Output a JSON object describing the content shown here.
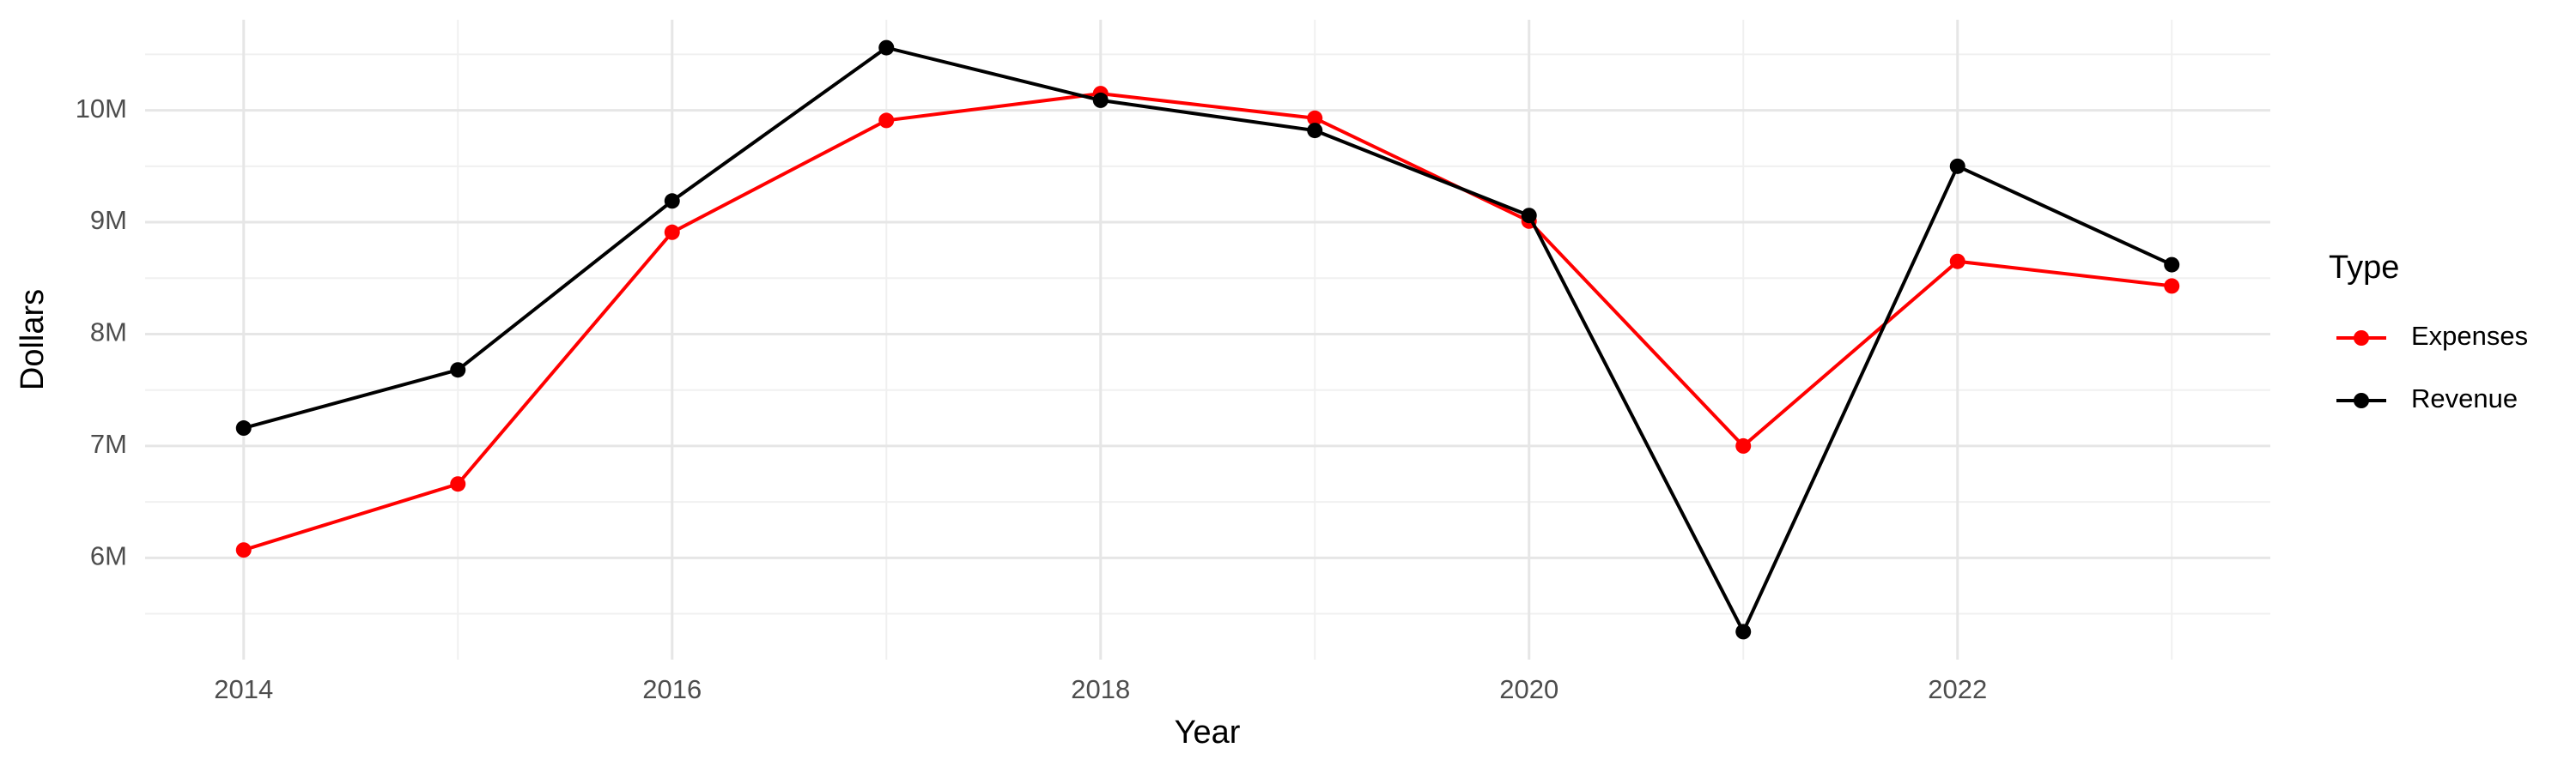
{
  "chart_data": {
    "type": "line",
    "x_label": "Year",
    "y_label": "Dollars",
    "x": [
      2014,
      2015,
      2016,
      2017,
      2018,
      2019,
      2020,
      2021,
      2022,
      2023
    ],
    "series": [
      {
        "name": "Expenses",
        "color": "#ff0000",
        "values": [
          6070000,
          6660000,
          8910000,
          9910000,
          10150000,
          9930000,
          9010000,
          7000000,
          8650000,
          8430000
        ]
      },
      {
        "name": "Revenue",
        "color": "#000000",
        "values": [
          7160000,
          7680000,
          9190000,
          10560000,
          10090000,
          9820000,
          9060000,
          5340000,
          9500000,
          8620000
        ]
      }
    ],
    "legend_title": "Type",
    "legend": "right",
    "xlim": [
      2013.54,
      2023.46
    ],
    "xticks": [
      2014,
      2016,
      2018,
      2020,
      2022
    ],
    "ylim": [
      5090000,
      10810000
    ],
    "yticks": [
      {
        "value": 6000000,
        "label": "6M"
      },
      {
        "value": 7000000,
        "label": "7M"
      },
      {
        "value": 8000000,
        "label": "8M"
      },
      {
        "value": 9000000,
        "label": "9M"
      },
      {
        "value": 10000000,
        "label": "10M"
      }
    ],
    "grid": true
  }
}
